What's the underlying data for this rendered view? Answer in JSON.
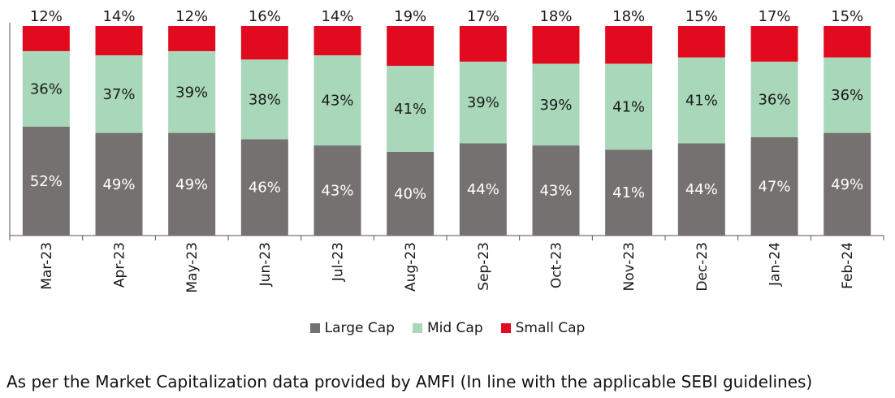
{
  "chart_data": {
    "type": "bar",
    "stacked": true,
    "percent_stacked": true,
    "categories": [
      "Mar-23",
      "Apr-23",
      "May-23",
      "Jun-23",
      "Jul-23",
      "Aug-23",
      "Sep-23",
      "Oct-23",
      "Nov-23",
      "Dec-23",
      "Jan-24",
      "Feb-24"
    ],
    "series": [
      {
        "name": "Large Cap",
        "color": "#767171",
        "label_color": "#ffffff",
        "values": [
          52,
          49,
          49,
          46,
          43,
          40,
          44,
          43,
          41,
          44,
          47,
          49
        ]
      },
      {
        "name": "Mid Cap",
        "color": "#a8d8b9",
        "label_color": "#1a1a1a",
        "values": [
          36,
          37,
          39,
          38,
          43,
          41,
          39,
          39,
          41,
          41,
          36,
          36
        ]
      },
      {
        "name": "Small Cap",
        "color": "#e10a1e",
        "label_color": "#1a1a1a",
        "values": [
          12,
          14,
          12,
          16,
          14,
          19,
          17,
          18,
          18,
          15,
          17,
          15
        ]
      }
    ],
    "ylim": [
      0,
      100
    ],
    "grid": false,
    "legend_position": "bottom"
  },
  "footnote": "As per the Market Capitalization data provided by AMFI (In line with the applicable SEBI guidelines)"
}
